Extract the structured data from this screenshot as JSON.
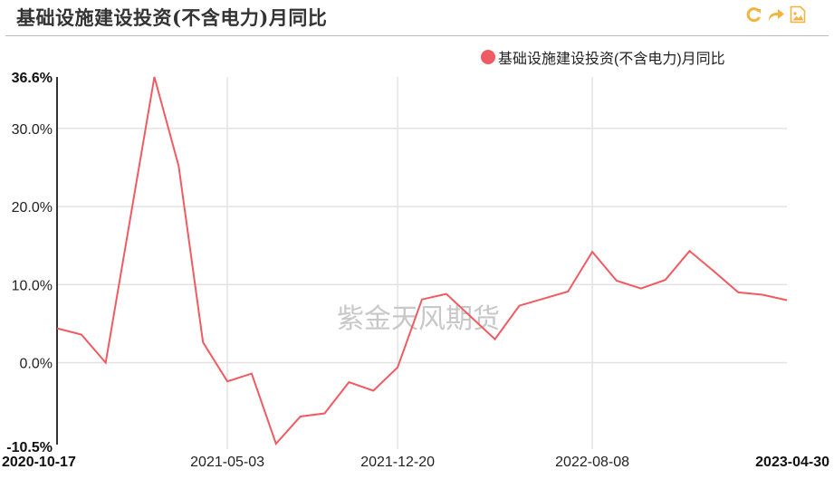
{
  "header": {
    "title": "基础设施建设投资(不含电力)月同比",
    "tools": [
      {
        "name": "refresh-icon",
        "glyph": "C"
      },
      {
        "name": "share-icon",
        "glyph": "↪"
      },
      {
        "name": "save-image-icon",
        "glyph": "🖼"
      }
    ],
    "tool_color": "#f4b23e"
  },
  "legend": {
    "label": "基础设施建设投资(不含电力)月同比",
    "color": "#f05b63"
  },
  "watermark": "紫金天风期货",
  "chart_data": {
    "type": "line",
    "title": "基础设施建设投资(不含电力)月同比",
    "xlabel": "",
    "ylabel": "",
    "ylim": [
      -10.5,
      36.6
    ],
    "y_ticks": [
      "36.6%",
      "30.0%",
      "20.0%",
      "10.0%",
      "0.0%",
      "-10.5%"
    ],
    "x_ticks": [
      "2020-10-17",
      "2021-05-03",
      "2021-12-20",
      "2022-08-08",
      "2023-04-30"
    ],
    "grid": true,
    "legend_position": "top-right",
    "series": [
      {
        "name": "基础设施建设投资(不含电力)月同比",
        "color": "#f05b63",
        "values": [
          4.4,
          3.6,
          0.0,
          18.3,
          36.6,
          25.2,
          2.6,
          -2.4,
          -1.4,
          -10.4,
          -6.9,
          -6.5,
          -2.5,
          -3.6,
          -0.6,
          8.1,
          8.8,
          5.9,
          3.0,
          7.3,
          8.2,
          9.1,
          14.2,
          10.5,
          9.5,
          10.6,
          14.3,
          11.7,
          9.0,
          8.7,
          8.0
        ]
      }
    ]
  }
}
